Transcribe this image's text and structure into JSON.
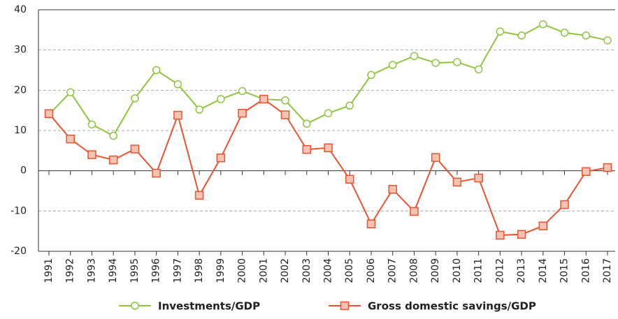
{
  "chart_data": {
    "type": "line",
    "categories": [
      "1991",
      "1992",
      "1993",
      "1994",
      "1995",
      "1996",
      "1997",
      "1998",
      "1999",
      "2000",
      "2001",
      "2002",
      "2003",
      "2004",
      "2005",
      "2006",
      "2007",
      "2008",
      "2009",
      "2010",
      "2011",
      "2012",
      "2013",
      "2014",
      "2015",
      "2016",
      "2017"
    ],
    "series": [
      {
        "name": "Investments/GDP",
        "color": "#8cc63e",
        "marker": "circle",
        "values": [
          14,
          19.5,
          11.5,
          8.7,
          18,
          25,
          21.5,
          15.2,
          17.8,
          19.8,
          17.8,
          17.5,
          11.7,
          14.3,
          16.2,
          23.8,
          26.3,
          28.5,
          26.8,
          27,
          25.2,
          34.6,
          33.6,
          36.4,
          34.3,
          33.6,
          32.4
        ]
      },
      {
        "name": "Gross domestic savings/GDP",
        "color": "#e9532d",
        "marker": "square",
        "values": [
          14.2,
          7.9,
          4,
          2.7,
          5.4,
          -0.6,
          13.8,
          -6.1,
          3.2,
          14.3,
          17.8,
          13.9,
          5.3,
          5.7,
          -2.1,
          -13.2,
          -4.6,
          -10.1,
          3.3,
          -2.8,
          -1.8,
          -16,
          -15.8,
          -13.7,
          -8.4,
          -0.2,
          0.8
        ]
      }
    ],
    "ylim": [
      -20,
      40
    ],
    "yticks": [
      -20,
      -10,
      0,
      10,
      20,
      30,
      40
    ],
    "grid": true,
    "legend": "bottom"
  }
}
